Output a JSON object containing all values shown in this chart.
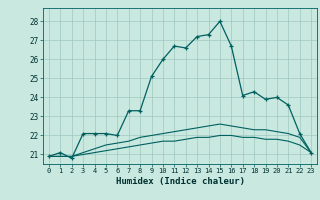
{
  "xlabel": "Humidex (Indice chaleur)",
  "background_color": "#c8e8e0",
  "line_color": "#006060",
  "grid_color": "#a0c8c0",
  "xlim": [
    -0.5,
    23.5
  ],
  "ylim": [
    20.5,
    28.7
  ],
  "xticks": [
    0,
    1,
    2,
    3,
    4,
    5,
    6,
    7,
    8,
    9,
    10,
    11,
    12,
    13,
    14,
    15,
    16,
    17,
    18,
    19,
    20,
    21,
    22,
    23
  ],
  "yticks": [
    21,
    22,
    23,
    24,
    25,
    26,
    27,
    28
  ],
  "series1_x": [
    0,
    1,
    2,
    3,
    4,
    5,
    6,
    7,
    8,
    9,
    10,
    11,
    12,
    13,
    14,
    15,
    16,
    17,
    18,
    19,
    20,
    21,
    22,
    23
  ],
  "series1_y": [
    20.9,
    21.1,
    20.8,
    22.1,
    22.1,
    22.1,
    22.0,
    23.3,
    23.3,
    25.1,
    26.0,
    26.7,
    26.6,
    27.2,
    27.3,
    28.0,
    26.7,
    24.1,
    24.3,
    23.9,
    24.0,
    23.6,
    22.1,
    21.1
  ],
  "series2_x": [
    0,
    1,
    2,
    3,
    4,
    5,
    6,
    7,
    8,
    9,
    10,
    11,
    12,
    13,
    14,
    15,
    16,
    17,
    18,
    19,
    20,
    21,
    22,
    23
  ],
  "series2_y": [
    20.9,
    20.9,
    20.9,
    21.1,
    21.3,
    21.5,
    21.6,
    21.7,
    21.9,
    22.0,
    22.1,
    22.2,
    22.3,
    22.4,
    22.5,
    22.6,
    22.5,
    22.4,
    22.3,
    22.3,
    22.2,
    22.1,
    21.9,
    21.1
  ],
  "series3_x": [
    0,
    1,
    2,
    3,
    4,
    5,
    6,
    7,
    8,
    9,
    10,
    11,
    12,
    13,
    14,
    15,
    16,
    17,
    18,
    19,
    20,
    21,
    22,
    23
  ],
  "series3_y": [
    20.9,
    20.9,
    20.9,
    21.0,
    21.1,
    21.2,
    21.3,
    21.4,
    21.5,
    21.6,
    21.7,
    21.7,
    21.8,
    21.9,
    21.9,
    22.0,
    22.0,
    21.9,
    21.9,
    21.8,
    21.8,
    21.7,
    21.5,
    21.1
  ]
}
